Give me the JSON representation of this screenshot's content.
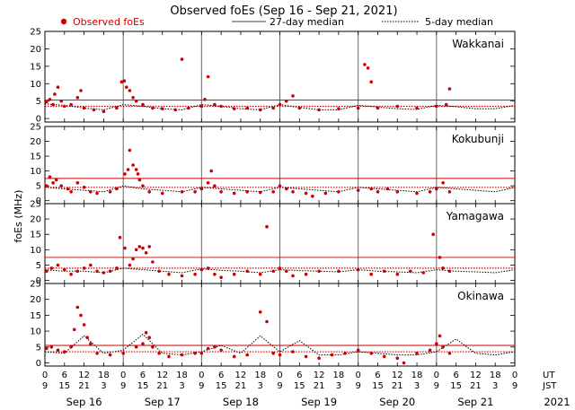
{
  "chart_data": {
    "type": "scatter",
    "title": "Observed foEs (Sep 16 - Sep 21, 2021)",
    "ylabel": "foEs (MHz)",
    "ylim": [
      -1,
      25
    ],
    "yticks": [
      0,
      5,
      10,
      15,
      20,
      25
    ],
    "grid": false,
    "legend": {
      "placement": "top",
      "entries": [
        "Observed foEs",
        "27-day median",
        "5-day median"
      ]
    },
    "colors": {
      "observed": "#cc0000",
      "median27": "#cc0000",
      "median5": "#000000"
    },
    "x_ut_ticks": [
      "0",
      "6",
      "12",
      "18",
      "0",
      "6",
      "12",
      "18",
      "0",
      "6",
      "12",
      "18",
      "0",
      "6",
      "12",
      "18",
      "0",
      "6",
      "12",
      "18",
      "0",
      "6",
      "12",
      "18",
      "0"
    ],
    "x_jst_ticks": [
      "9",
      "15",
      "21",
      "3",
      "9",
      "15",
      "21",
      "3",
      "9",
      "15",
      "21",
      "3",
      "9",
      "15",
      "21",
      "3",
      "9",
      "15",
      "21",
      "3",
      "9",
      "15",
      "21",
      "3",
      "9"
    ],
    "x_row_labels": {
      "ut": "UT",
      "jst": "JST"
    },
    "days": [
      "Sep 16",
      "Sep 17",
      "Sep 18",
      "Sep 19",
      "Sep 20",
      "Sep 21"
    ],
    "year": "2021",
    "panels": [
      {
        "station": "Wakkanai",
        "median27": 5.3,
        "median5_base": 3.5,
        "observed": [
          [
            0.5,
            4.8
          ],
          [
            1.5,
            5.5
          ],
          [
            2.5,
            4
          ],
          [
            3,
            7
          ],
          [
            4,
            9
          ],
          [
            5,
            5
          ],
          [
            6,
            3.5
          ],
          [
            8,
            4
          ],
          [
            10,
            6
          ],
          [
            11,
            8
          ],
          [
            12,
            3
          ],
          [
            15,
            2.5
          ],
          [
            18,
            2
          ],
          [
            22,
            3
          ],
          [
            23.5,
            10.5
          ],
          [
            24.3,
            10.8
          ],
          [
            25,
            9
          ],
          [
            26,
            8
          ],
          [
            27,
            6
          ],
          [
            28,
            5
          ],
          [
            30,
            4
          ],
          [
            33,
            3
          ],
          [
            36,
            2.8
          ],
          [
            40,
            2.5
          ],
          [
            42,
            17
          ],
          [
            44,
            3
          ],
          [
            48,
            3.5
          ],
          [
            49,
            5.5
          ],
          [
            50,
            12
          ],
          [
            52,
            4
          ],
          [
            54,
            3.5
          ],
          [
            58,
            2.8
          ],
          [
            62,
            3
          ],
          [
            66,
            2.5
          ],
          [
            70,
            3
          ],
          [
            72,
            4
          ],
          [
            74,
            5
          ],
          [
            76,
            6.5
          ],
          [
            78,
            3
          ],
          [
            84,
            2.5
          ],
          [
            90,
            2.8
          ],
          [
            96,
            3
          ],
          [
            98,
            15.5
          ],
          [
            99,
            14.5
          ],
          [
            100,
            10.5
          ],
          [
            102,
            3
          ],
          [
            108,
            3.5
          ],
          [
            114,
            3
          ],
          [
            120,
            3.5
          ],
          [
            124,
            8.5
          ],
          [
            123,
            4
          ]
        ],
        "median5": [
          [
            0,
            4.2
          ],
          [
            6,
            3.8
          ],
          [
            12,
            3
          ],
          [
            18,
            2.5
          ],
          [
            24,
            4
          ],
          [
            30,
            3.5
          ],
          [
            36,
            2.8
          ],
          [
            42,
            2.5
          ],
          [
            48,
            4
          ],
          [
            54,
            3.5
          ],
          [
            60,
            2.8
          ],
          [
            66,
            2.5
          ],
          [
            72,
            4
          ],
          [
            78,
            3.2
          ],
          [
            84,
            2.5
          ],
          [
            90,
            2.5
          ],
          [
            96,
            3.8
          ],
          [
            102,
            3.3
          ],
          [
            108,
            2.8
          ],
          [
            114,
            2.6
          ],
          [
            120,
            3.8
          ],
          [
            126,
            3.4
          ],
          [
            132,
            2.8
          ],
          [
            138,
            2.8
          ],
          [
            144,
            3.8
          ]
        ]
      },
      {
        "station": "Kokubunji",
        "median27": 7.5,
        "median5_base": 4.5,
        "observed": [
          [
            0.5,
            5
          ],
          [
            1.5,
            8
          ],
          [
            2.5,
            6
          ],
          [
            3.5,
            7
          ],
          [
            5,
            5
          ],
          [
            7,
            4
          ],
          [
            8,
            3
          ],
          [
            10,
            6
          ],
          [
            12,
            4.5
          ],
          [
            14,
            3
          ],
          [
            16,
            2.5
          ],
          [
            20,
            3
          ],
          [
            22,
            4
          ],
          [
            24.5,
            9
          ],
          [
            25.5,
            10.5
          ],
          [
            26,
            17
          ],
          [
            27,
            12
          ],
          [
            28,
            10.5
          ],
          [
            28.5,
            9
          ],
          [
            29,
            7
          ],
          [
            30,
            5
          ],
          [
            32,
            3
          ],
          [
            36,
            2.5
          ],
          [
            42,
            3
          ],
          [
            46,
            3
          ],
          [
            48,
            4
          ],
          [
            50,
            6
          ],
          [
            51,
            10
          ],
          [
            52,
            5
          ],
          [
            54,
            3
          ],
          [
            58,
            2.5
          ],
          [
            62,
            3
          ],
          [
            66,
            2.8
          ],
          [
            70,
            3
          ],
          [
            72,
            5
          ],
          [
            74,
            4
          ],
          [
            76,
            3
          ],
          [
            80,
            2.5
          ],
          [
            82,
            1.5
          ],
          [
            86,
            2.5
          ],
          [
            90,
            3
          ],
          [
            96,
            3.5
          ],
          [
            100,
            4
          ],
          [
            102,
            3
          ],
          [
            105,
            4
          ],
          [
            108,
            3
          ],
          [
            114,
            2.5
          ],
          [
            118,
            3
          ],
          [
            120,
            4
          ],
          [
            122,
            6
          ],
          [
            124,
            3
          ]
        ],
        "median5": [
          [
            0,
            4.5
          ],
          [
            6,
            4
          ],
          [
            12,
            3.5
          ],
          [
            18,
            3
          ],
          [
            24,
            5
          ],
          [
            30,
            4
          ],
          [
            36,
            3.5
          ],
          [
            42,
            3
          ],
          [
            48,
            4.5
          ],
          [
            54,
            4
          ],
          [
            60,
            3.5
          ],
          [
            66,
            3
          ],
          [
            72,
            4.5
          ],
          [
            78,
            4
          ],
          [
            84,
            3.5
          ],
          [
            90,
            3
          ],
          [
            96,
            4.5
          ],
          [
            102,
            4
          ],
          [
            108,
            3.5
          ],
          [
            114,
            3
          ],
          [
            120,
            4.5
          ],
          [
            126,
            4
          ],
          [
            132,
            3.5
          ],
          [
            138,
            3
          ],
          [
            144,
            4.5
          ]
        ]
      },
      {
        "station": "Yamagawa",
        "median27": 7.5,
        "median5_base": 4,
        "observed": [
          [
            0.5,
            3
          ],
          [
            2,
            4
          ],
          [
            4,
            5
          ],
          [
            6,
            3.5
          ],
          [
            8,
            2
          ],
          [
            10,
            3
          ],
          [
            12,
            4
          ],
          [
            14,
            5
          ],
          [
            16,
            3
          ],
          [
            18,
            2.5
          ],
          [
            20,
            3
          ],
          [
            22,
            4
          ],
          [
            23,
            14
          ],
          [
            24.5,
            10.5
          ],
          [
            26,
            5
          ],
          [
            27,
            7
          ],
          [
            28,
            10
          ],
          [
            29,
            11
          ],
          [
            30,
            10.5
          ],
          [
            31,
            9
          ],
          [
            32,
            11
          ],
          [
            33,
            6
          ],
          [
            35,
            3
          ],
          [
            38,
            2
          ],
          [
            42,
            1.5
          ],
          [
            46,
            2
          ],
          [
            48,
            3.5
          ],
          [
            50,
            4
          ],
          [
            52,
            2
          ],
          [
            54,
            1
          ],
          [
            58,
            2
          ],
          [
            62,
            3
          ],
          [
            66,
            2
          ],
          [
            68,
            17.5
          ],
          [
            70,
            3
          ],
          [
            72,
            4
          ],
          [
            74,
            3
          ],
          [
            76,
            1.5
          ],
          [
            80,
            2
          ],
          [
            84,
            3
          ],
          [
            90,
            3
          ],
          [
            96,
            3.5
          ],
          [
            100,
            2
          ],
          [
            104,
            3
          ],
          [
            108,
            2
          ],
          [
            112,
            3
          ],
          [
            116,
            2.5
          ],
          [
            119,
            15
          ],
          [
            121,
            7.5
          ],
          [
            122,
            4
          ],
          [
            124,
            3
          ]
        ],
        "median5": [
          [
            0,
            3.5
          ],
          [
            6,
            3
          ],
          [
            12,
            3
          ],
          [
            18,
            2.5
          ],
          [
            24,
            4
          ],
          [
            30,
            3.5
          ],
          [
            36,
            3
          ],
          [
            42,
            2.5
          ],
          [
            48,
            3.8
          ],
          [
            54,
            3.3
          ],
          [
            60,
            3
          ],
          [
            66,
            2.5
          ],
          [
            72,
            3.5
          ],
          [
            78,
            3.2
          ],
          [
            84,
            3
          ],
          [
            90,
            2.8
          ],
          [
            96,
            3.5
          ],
          [
            102,
            3
          ],
          [
            108,
            2.8
          ],
          [
            114,
            2.5
          ],
          [
            120,
            3.5
          ],
          [
            126,
            3
          ],
          [
            132,
            2.8
          ],
          [
            138,
            2.5
          ],
          [
            144,
            3.5
          ]
        ]
      },
      {
        "station": "Okinawa",
        "median27": 5.5,
        "median5_base": 3.5,
        "observed": [
          [
            0.5,
            4.5
          ],
          [
            2,
            5
          ],
          [
            4,
            4
          ],
          [
            6,
            3.5
          ],
          [
            8,
            5
          ],
          [
            9,
            10.5
          ],
          [
            10,
            17.5
          ],
          [
            11,
            15
          ],
          [
            12,
            12
          ],
          [
            13,
            8
          ],
          [
            14,
            6
          ],
          [
            16,
            3
          ],
          [
            20,
            2.5
          ],
          [
            24,
            3
          ],
          [
            28,
            5
          ],
          [
            30,
            6
          ],
          [
            31,
            9.5
          ],
          [
            32,
            8
          ],
          [
            33,
            5
          ],
          [
            35,
            3
          ],
          [
            38,
            2
          ],
          [
            42,
            2.5
          ],
          [
            46,
            3
          ],
          [
            48,
            3
          ],
          [
            50,
            4.5
          ],
          [
            52,
            5
          ],
          [
            54,
            4
          ],
          [
            58,
            2
          ],
          [
            62,
            2.5
          ],
          [
            66,
            16
          ],
          [
            68,
            13
          ],
          [
            70,
            3
          ],
          [
            72,
            2.5
          ],
          [
            76,
            3.5
          ],
          [
            80,
            2
          ],
          [
            84,
            1.5
          ],
          [
            88,
            2.5
          ],
          [
            92,
            3
          ],
          [
            96,
            4
          ],
          [
            100,
            3
          ],
          [
            104,
            2
          ],
          [
            108,
            1.5
          ],
          [
            110,
            0
          ],
          [
            114,
            3
          ],
          [
            118,
            4
          ],
          [
            120,
            6
          ],
          [
            121,
            8.5
          ],
          [
            122,
            5
          ],
          [
            124,
            3
          ]
        ],
        "median5": [
          [
            0,
            3.5
          ],
          [
            6,
            3
          ],
          [
            12,
            8.5
          ],
          [
            18,
            3
          ],
          [
            24,
            4
          ],
          [
            30,
            9
          ],
          [
            36,
            3
          ],
          [
            42,
            2.5
          ],
          [
            48,
            3.5
          ],
          [
            54,
            5.5
          ],
          [
            60,
            3
          ],
          [
            66,
            8.5
          ],
          [
            72,
            3.5
          ],
          [
            78,
            7
          ],
          [
            84,
            2.5
          ],
          [
            90,
            2.5
          ],
          [
            96,
            3.5
          ],
          [
            102,
            3
          ],
          [
            108,
            2.5
          ],
          [
            114,
            2.5
          ],
          [
            120,
            3.5
          ],
          [
            126,
            7.5
          ],
          [
            132,
            3
          ],
          [
            138,
            2.5
          ],
          [
            144,
            3.5
          ]
        ]
      }
    ]
  }
}
